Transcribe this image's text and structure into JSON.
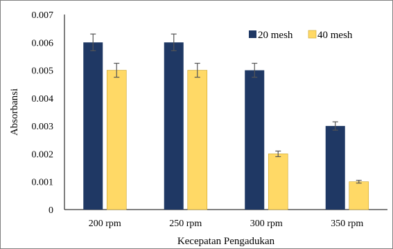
{
  "chart_data": {
    "type": "bar",
    "categories": [
      "200 rpm",
      "250 rpm",
      "300 rpm",
      "350 rpm"
    ],
    "series": [
      {
        "name": "20 mesh",
        "values": [
          0.006,
          0.006,
          0.005,
          0.003
        ],
        "errors": [
          0.0003,
          0.0003,
          0.00025,
          0.00015
        ],
        "color": "#1f3864"
      },
      {
        "name": "40 mesh",
        "values": [
          0.005,
          0.005,
          0.002,
          0.001
        ],
        "errors": [
          0.00025,
          0.00025,
          0.0001,
          5e-05
        ],
        "color": "#ffd966"
      }
    ],
    "xlabel": "Kecepatan Pengadukan",
    "ylabel": "Absorbansi",
    "ylim": [
      0,
      0.007
    ],
    "yticks": [
      "0",
      "0.001",
      "0.002",
      "0.003",
      "0.004",
      "0.005",
      "0.006",
      "0.007"
    ],
    "grid": false,
    "legend_position": "top-right"
  }
}
